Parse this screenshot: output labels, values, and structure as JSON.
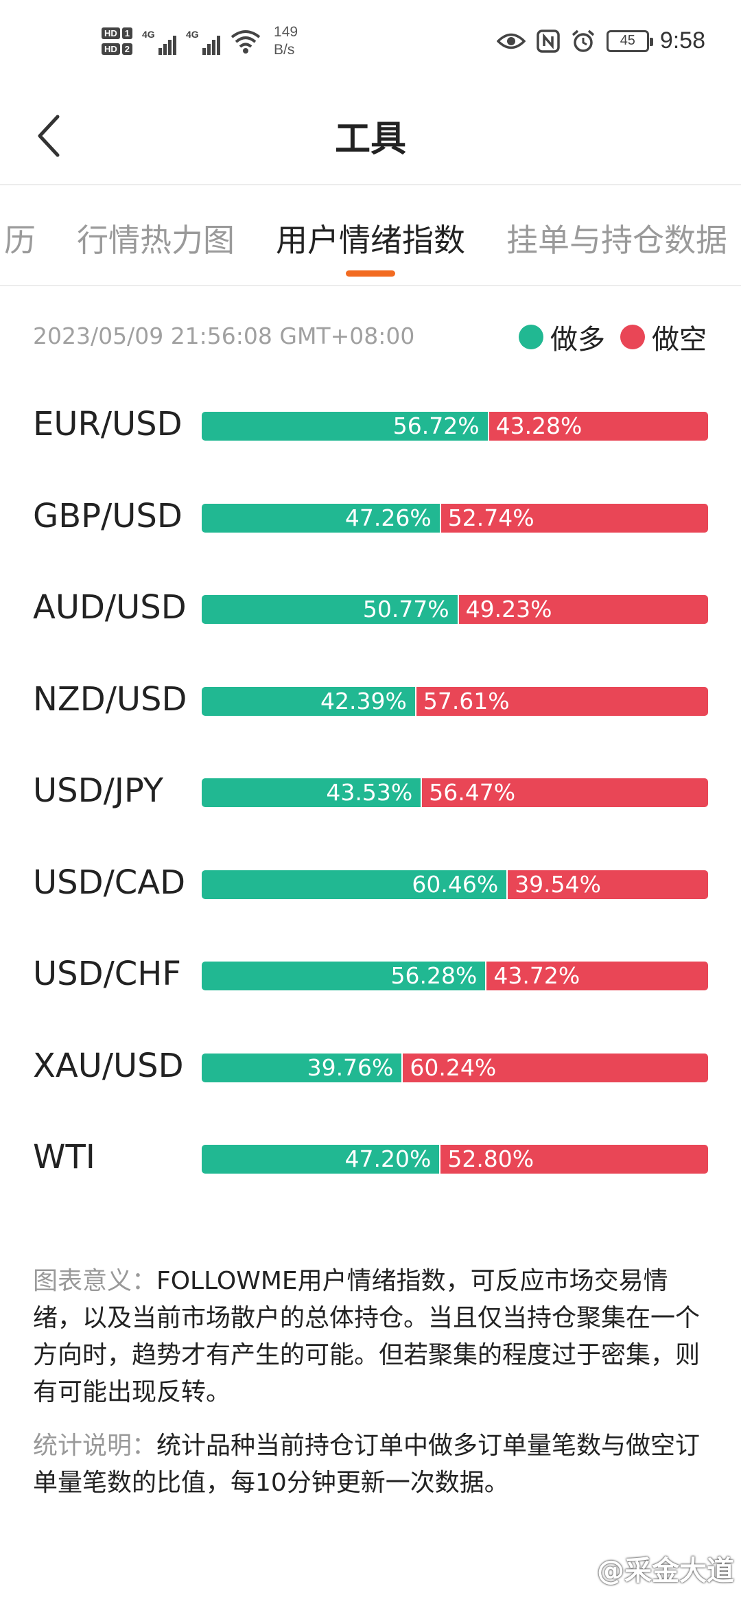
{
  "status_bar": {
    "hd1": "HD",
    "hd1_num": "1",
    "hd2": "HD",
    "hd2_num": "2",
    "net1": "4G",
    "net2": "4G",
    "net_speed_value": "149",
    "net_speed_unit": "B/s",
    "battery": "45",
    "time": "9:58"
  },
  "header": {
    "title": "工具"
  },
  "tabs": [
    {
      "label": "历"
    },
    {
      "label": "行情热力图"
    },
    {
      "label": "用户情绪指数",
      "active": true
    },
    {
      "label": "挂单与持仓数据"
    }
  ],
  "timestamp": "2023/05/09 21:56:08 GMT+08:00",
  "legend": {
    "long_label": "做多",
    "short_label": "做空",
    "long_color": "#21b892",
    "short_color": "#e94656"
  },
  "sentiment": [
    {
      "pair": "EUR/USD",
      "long": 56.72,
      "short": 43.28,
      "long_text": "56.72%",
      "short_text": "43.28%"
    },
    {
      "pair": "GBP/USD",
      "long": 47.26,
      "short": 52.74,
      "long_text": "47.26%",
      "short_text": "52.74%"
    },
    {
      "pair": "AUD/USD",
      "long": 50.77,
      "short": 49.23,
      "long_text": "50.77%",
      "short_text": "49.23%"
    },
    {
      "pair": "NZD/USD",
      "long": 42.39,
      "short": 57.61,
      "long_text": "42.39%",
      "short_text": "57.61%"
    },
    {
      "pair": "USD/JPY",
      "long": 43.53,
      "short": 56.47,
      "long_text": "43.53%",
      "short_text": "56.47%"
    },
    {
      "pair": "USD/CAD",
      "long": 60.46,
      "short": 39.54,
      "long_text": "60.46%",
      "short_text": "39.54%"
    },
    {
      "pair": "USD/CHF",
      "long": 56.28,
      "short": 43.72,
      "long_text": "56.28%",
      "short_text": "43.72%"
    },
    {
      "pair": "XAU/USD",
      "long": 39.76,
      "short": 60.24,
      "long_text": "39.76%",
      "short_text": "60.24%"
    },
    {
      "pair": "WTI",
      "long": 47.2,
      "short": 52.8,
      "long_text": "47.20%",
      "short_text": "52.80%"
    }
  ],
  "notes": {
    "meaning_label": "图表意义：",
    "meaning_text": "FOLLOWME用户情绪指数，可反应市场交易情绪，以及当前市场散户的总体持仓。当且仅当持仓聚集在一个方向时，趋势才有产生的可能。但若聚集的程度过于密集，则有可能出现反转。",
    "stats_label": "统计说明：",
    "stats_text": "统计品种当前持仓订单中做多订单量笔数与做空订单量笔数的比值，每10分钟更新一次数据。"
  },
  "watermark": "@采金大道"
}
